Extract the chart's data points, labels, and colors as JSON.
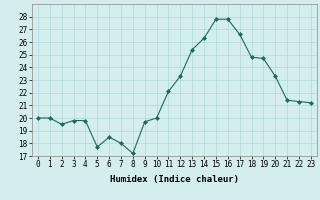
{
  "x": [
    0,
    1,
    2,
    3,
    4,
    5,
    6,
    7,
    8,
    9,
    10,
    11,
    12,
    13,
    14,
    15,
    16,
    17,
    18,
    19,
    20,
    21,
    22,
    23
  ],
  "y": [
    20.0,
    20.0,
    19.5,
    19.8,
    19.8,
    17.7,
    18.5,
    18.0,
    17.2,
    19.7,
    20.0,
    22.1,
    23.3,
    25.4,
    26.3,
    27.8,
    27.8,
    26.6,
    24.8,
    24.7,
    23.3,
    21.4,
    21.3,
    21.2
  ],
  "line_color": "#1a6b5a",
  "marker": "D",
  "marker_size": 2,
  "bg_color": "#d4eeee",
  "grid_color": "#b0d8d8",
  "xlabel": "Humidex (Indice chaleur)",
  "ylim": [
    17,
    29
  ],
  "yticks": [
    17,
    18,
    19,
    20,
    21,
    22,
    23,
    24,
    25,
    26,
    27,
    28
  ],
  "xticks": [
    0,
    1,
    2,
    3,
    4,
    5,
    6,
    7,
    8,
    9,
    10,
    11,
    12,
    13,
    14,
    15,
    16,
    17,
    18,
    19,
    20,
    21,
    22,
    23
  ],
  "xlabel_fontsize": 6.5,
  "tick_fontsize": 5.5
}
